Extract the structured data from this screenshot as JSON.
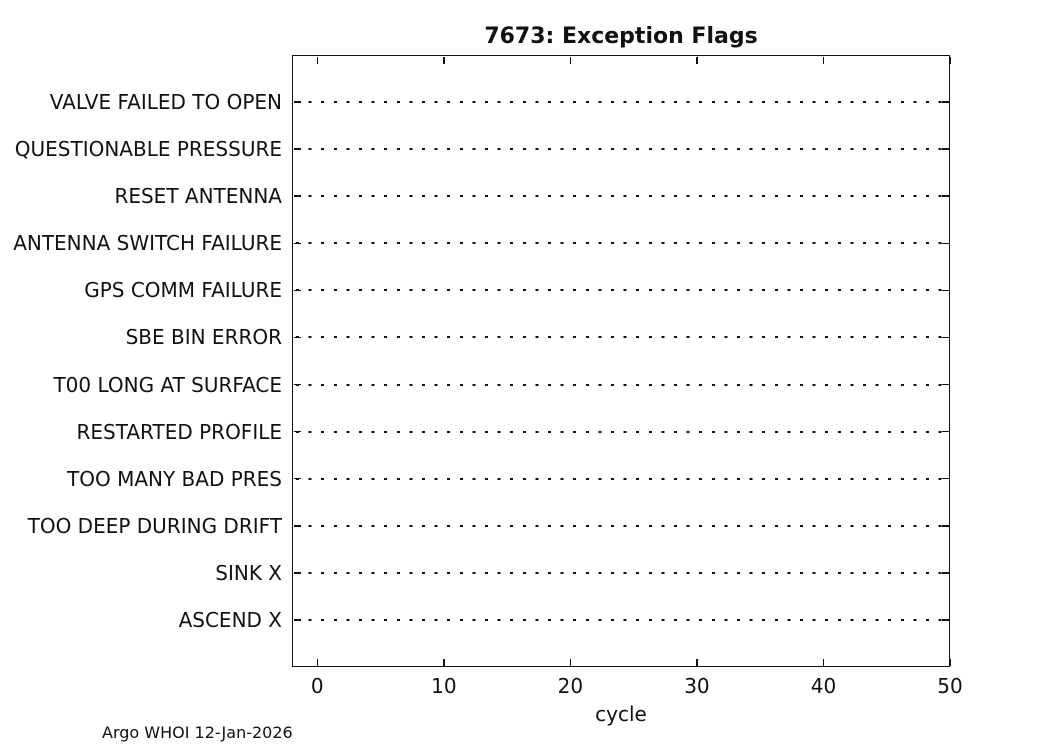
{
  "figure": {
    "footer": "Argo WHOI 12-Jan-2026"
  },
  "chart_data": {
    "type": "scatter",
    "title": "7673: Exception Flags",
    "xlabel": "cycle",
    "ylabel": "",
    "xlim": [
      -2,
      50
    ],
    "x_ticks": [
      0,
      10,
      20,
      30,
      40,
      50
    ],
    "x_tick_labels": [
      "0",
      "10",
      "20",
      "30",
      "40",
      "50"
    ],
    "categories_top_to_bottom": [
      "VALVE FAILED TO OPEN",
      "QUESTIONABLE PRESSURE",
      "RESET ANTENNA",
      "ANTENNA SWITCH FAILURE",
      "GPS COMM FAILURE",
      "SBE BIN ERROR",
      "T00 LONG AT SURFACE",
      "RESTARTED PROFILE",
      "TOO MANY BAD PRES",
      "TOO DEEP DURING DRIFT",
      "SINK X",
      "ASCEND X"
    ],
    "series": [],
    "points": [],
    "grid": "horizontal dotted black line at each category row",
    "legend": "none",
    "notes": "Empty plot: no exception flag events are marked for any cycle"
  },
  "colors": {
    "axis": "#111111",
    "text": "#111111",
    "gridline": "#111111",
    "background": "#ffffff"
  }
}
